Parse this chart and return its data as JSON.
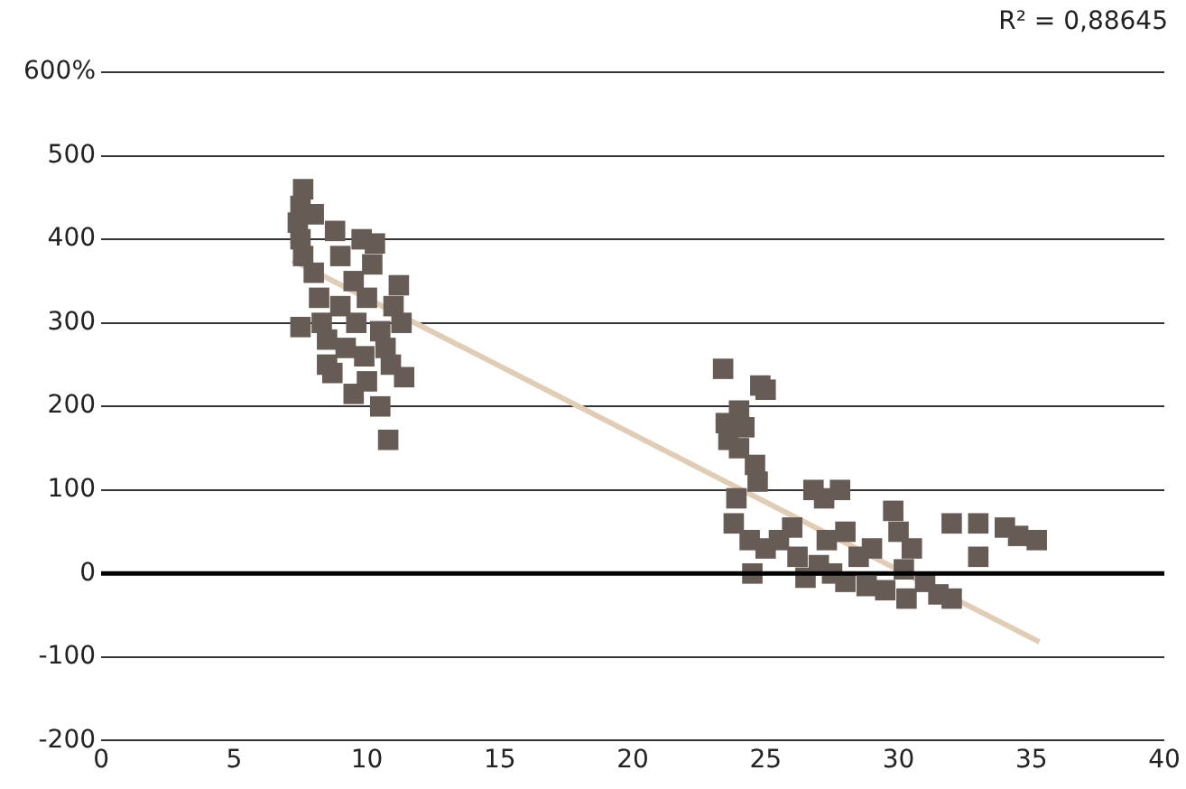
{
  "chart_data": {
    "type": "scatter",
    "annotations": [
      "R² = 0,88645"
    ],
    "xlim": [
      0,
      40
    ],
    "xticks": [
      0,
      5,
      10,
      15,
      20,
      25,
      30,
      35,
      40
    ],
    "ylim": [
      -200,
      600
    ],
    "yticks": [
      {
        "value": -200,
        "label": "-200"
      },
      {
        "value": -100,
        "label": "-100"
      },
      {
        "value": 0,
        "label": "0"
      },
      {
        "value": 100,
        "label": "100"
      },
      {
        "value": 200,
        "label": "200"
      },
      {
        "value": 300,
        "label": "300"
      },
      {
        "value": 400,
        "label": "400"
      },
      {
        "value": 500,
        "label": "500"
      },
      {
        "value": 600,
        "label": "600%"
      }
    ],
    "grid": "y",
    "legend": false,
    "marker": "square",
    "ref_lines": [
      {
        "axis": "y",
        "value": 0,
        "color": "#000000"
      }
    ],
    "series": [
      {
        "color": "#665c55",
        "x": [
          7.6,
          7.5,
          7.4,
          7.5,
          7.6,
          7.5,
          8,
          8.2,
          8.3,
          8.5,
          8.5,
          8.8,
          8.7,
          9,
          9.2,
          9.5,
          9.5,
          9.6,
          9.8,
          9.9,
          10,
          10,
          10.2,
          10.3,
          10.5,
          10.5,
          10.8,
          10.9,
          11,
          11.2,
          11.4,
          11.3,
          9,
          8,
          10.7,
          23.4,
          23.5,
          23.6,
          23.8,
          23.9,
          24,
          24,
          24.2,
          24.4,
          24.5,
          24.6,
          24.7,
          24.8,
          25,
          25,
          25.5,
          26,
          26.2,
          26.5,
          26.8,
          27,
          27.2,
          27.3,
          27.5,
          27.8,
          28,
          28,
          28.5,
          28.8,
          29,
          29.5,
          29.8,
          30,
          30.2,
          30.3,
          30.5,
          31,
          31.5,
          32,
          32,
          33,
          33,
          34,
          35.2,
          34.5
        ],
        "values": [
          460,
          440,
          420,
          400,
          380,
          295,
          360,
          330,
          300,
          280,
          250,
          410,
          240,
          320,
          270,
          215,
          350,
          300,
          400,
          260,
          230,
          330,
          370,
          395,
          290,
          200,
          160,
          250,
          320,
          345,
          235,
          300,
          380,
          430,
          270,
          245,
          180,
          160,
          60,
          90,
          150,
          195,
          175,
          40,
          0,
          130,
          110,
          225,
          220,
          30,
          40,
          55,
          20,
          -5,
          100,
          10,
          90,
          40,
          0,
          100,
          50,
          -10,
          20,
          -15,
          30,
          -20,
          75,
          50,
          5,
          -30,
          30,
          -10,
          -25,
          -30,
          60,
          20,
          60,
          55,
          40,
          45
        ]
      },
      {
        "type": "line",
        "color": "#e0cdb4",
        "marker": "none",
        "x": [
          7.2,
          35.3
        ],
        "values": [
          375,
          -82
        ]
      }
    ]
  }
}
